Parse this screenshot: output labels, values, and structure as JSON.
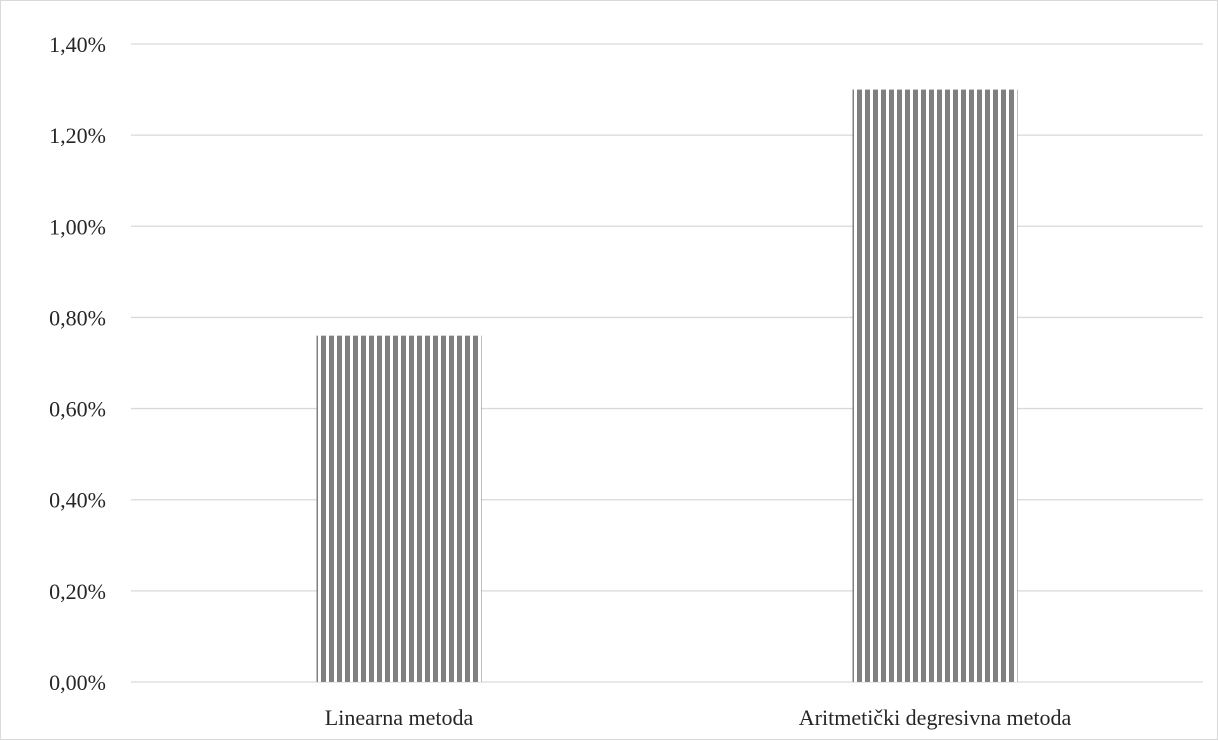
{
  "chart_data": {
    "type": "bar",
    "categories": [
      "Linearna metoda",
      "Aritmetički degresivna metoda"
    ],
    "values": [
      0.76,
      1.3
    ],
    "ylim": [
      0,
      1.4
    ],
    "yticks": [
      0,
      0.2,
      0.4,
      0.6,
      0.8,
      1.0,
      1.2,
      1.4
    ],
    "ytick_labels": [
      "0,00%",
      "0,20%",
      "0,40%",
      "0,60%",
      "0,80%",
      "1,00%",
      "1,20%",
      "1,40%"
    ],
    "title": "",
    "xlabel": "",
    "ylabel": "",
    "grid": true,
    "legend": "none",
    "bar_pattern": "vertical-stripes",
    "colors": {
      "bar_stripe": "#808080",
      "grid": "#d9d9d9",
      "text": "#262626"
    }
  }
}
